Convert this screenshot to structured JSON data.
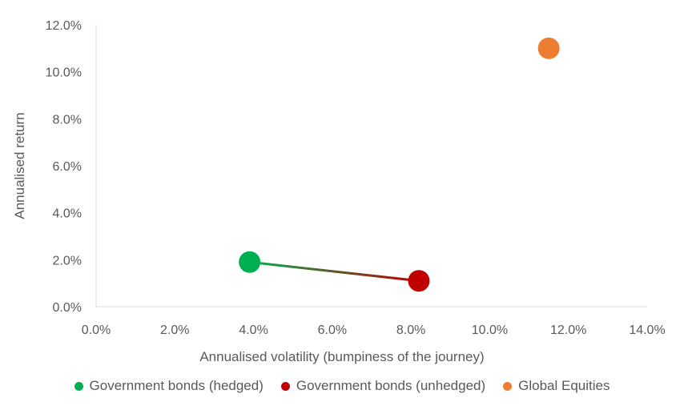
{
  "chart_data": {
    "type": "scatter",
    "title": "",
    "xlabel": "Annualised volatility (bumpiness of the journey)",
    "ylabel": "Annualised return",
    "xlim": [
      0,
      14
    ],
    "ylim": [
      0,
      12
    ],
    "x_ticks": [
      "0.0%",
      "2.0%",
      "4.0%",
      "6.0%",
      "8.0%",
      "10.0%",
      "12.0%",
      "14.0%"
    ],
    "y_ticks": [
      "0.0%",
      "2.0%",
      "4.0%",
      "6.0%",
      "8.0%",
      "10.0%",
      "12.0%"
    ],
    "grid": false,
    "legend_position": "bottom",
    "series": [
      {
        "name": "Government bonds (hedged)",
        "color": "#00B050",
        "x": 3.9,
        "y": 1.9
      },
      {
        "name": "Government bonds (unhedged)",
        "color": "#C00000",
        "x": 8.2,
        "y": 1.1
      },
      {
        "name": "Global Equities",
        "color": "#ED7D31",
        "x": 11.5,
        "y": 11.0
      }
    ],
    "connector": {
      "from": "Government bonds (hedged)",
      "to": "Government bonds (unhedged)",
      "style": "gradient"
    }
  }
}
